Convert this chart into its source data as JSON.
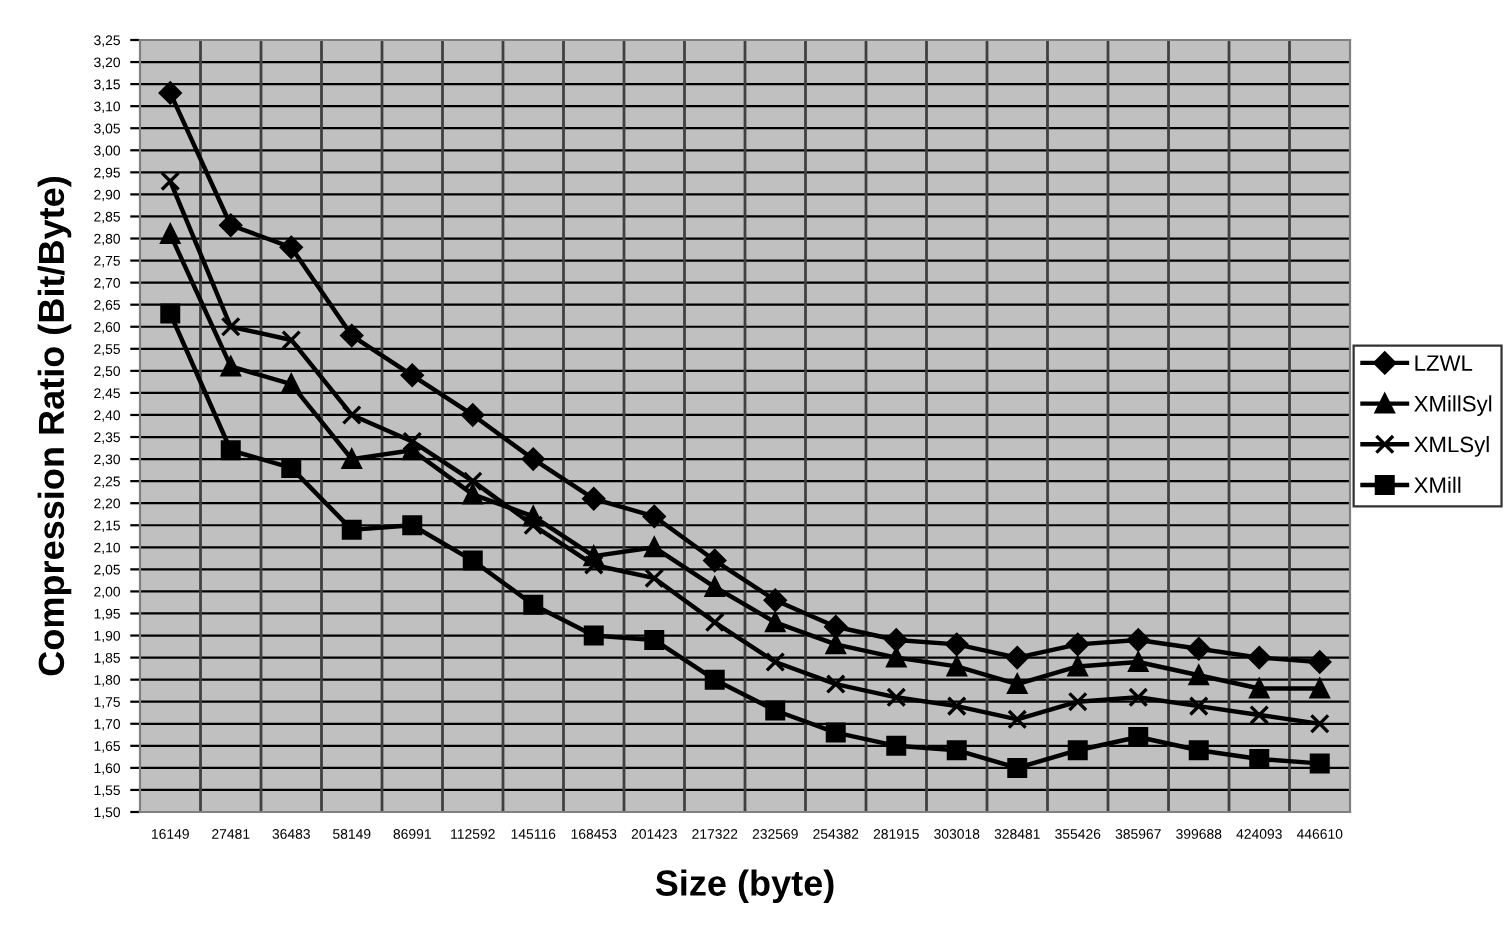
{
  "chart_data": {
    "type": "line",
    "xlabel": "Size (byte)",
    "ylabel": "Compression Ratio (Bit/Byte)",
    "categories": [
      "16149",
      "27481",
      "36483",
      "58149",
      "86991",
      "112592",
      "145116",
      "168453",
      "201423",
      "217322",
      "232569",
      "254382",
      "281915",
      "303018",
      "328481",
      "355426",
      "385967",
      "399688",
      "424093",
      "446610"
    ],
    "series": [
      {
        "name": "LZWL",
        "color": "#000000",
        "marker": "diamond",
        "values": [
          3.13,
          2.83,
          2.78,
          2.58,
          2.49,
          2.4,
          2.3,
          2.21,
          2.17,
          2.07,
          1.98,
          1.92,
          1.89,
          1.88,
          1.85,
          1.88,
          1.89,
          1.87,
          1.85,
          1.84
        ]
      },
      {
        "name": "XMillSyl",
        "color": "#000000",
        "marker": "triangle",
        "values": [
          2.81,
          2.51,
          2.47,
          2.3,
          2.32,
          2.22,
          2.17,
          2.08,
          2.1,
          2.01,
          1.93,
          1.88,
          1.85,
          1.83,
          1.79,
          1.83,
          1.84,
          1.81,
          1.78,
          1.78
        ]
      },
      {
        "name": "XMLSyl",
        "color": "#000000",
        "marker": "cross",
        "values": [
          2.93,
          2.6,
          2.57,
          2.4,
          2.34,
          2.25,
          2.15,
          2.06,
          2.03,
          1.93,
          1.84,
          1.79,
          1.76,
          1.74,
          1.71,
          1.75,
          1.76,
          1.74,
          1.72,
          1.7
        ]
      },
      {
        "name": "XMill",
        "color": "#000000",
        "marker": "square",
        "values": [
          2.63,
          2.32,
          2.28,
          2.14,
          2.15,
          2.07,
          1.97,
          1.9,
          1.89,
          1.8,
          1.73,
          1.68,
          1.65,
          1.64,
          1.6,
          1.64,
          1.67,
          1.64,
          1.62,
          1.61
        ]
      }
    ],
    "ylim": [
      1.5,
      3.25
    ],
    "yticks": [
      {
        "value": 1.5,
        "label": "1,50"
      },
      {
        "value": 1.55,
        "label": "1,55"
      },
      {
        "value": 1.6,
        "label": "1,60"
      },
      {
        "value": 1.65,
        "label": "1,65"
      },
      {
        "value": 1.7,
        "label": "1,70"
      },
      {
        "value": 1.75,
        "label": "1,75"
      },
      {
        "value": 1.8,
        "label": "1,80"
      },
      {
        "value": 1.85,
        "label": "1,85"
      },
      {
        "value": 1.9,
        "label": "1,90"
      },
      {
        "value": 1.95,
        "label": "1,95"
      },
      {
        "value": 2.0,
        "label": "2,00"
      },
      {
        "value": 2.05,
        "label": "2,05"
      },
      {
        "value": 2.1,
        "label": "2,10"
      },
      {
        "value": 2.15,
        "label": "2,15"
      },
      {
        "value": 2.2,
        "label": "2,20"
      },
      {
        "value": 2.25,
        "label": "2,25"
      },
      {
        "value": 2.3,
        "label": "2,30"
      },
      {
        "value": 2.35,
        "label": "2,35"
      },
      {
        "value": 2.4,
        "label": "2,40"
      },
      {
        "value": 2.45,
        "label": "2,45"
      },
      {
        "value": 2.5,
        "label": "2,50"
      },
      {
        "value": 2.55,
        "label": "2,55"
      },
      {
        "value": 2.6,
        "label": "2,60"
      },
      {
        "value": 2.65,
        "label": "2,65"
      },
      {
        "value": 2.7,
        "label": "2,70"
      },
      {
        "value": 2.75,
        "label": "2,75"
      },
      {
        "value": 2.8,
        "label": "2,80"
      },
      {
        "value": 2.85,
        "label": "2,85"
      },
      {
        "value": 2.9,
        "label": "2,90"
      },
      {
        "value": 2.95,
        "label": "2,95"
      },
      {
        "value": 3.0,
        "label": "3,00"
      },
      {
        "value": 3.05,
        "label": "3,05"
      },
      {
        "value": 3.1,
        "label": "3,10"
      },
      {
        "value": 3.15,
        "label": "3,15"
      },
      {
        "value": 3.2,
        "label": "3,20"
      },
      {
        "value": 3.25,
        "label": "3,25"
      }
    ],
    "grid": true,
    "legend": "right",
    "line_style": "solid"
  }
}
